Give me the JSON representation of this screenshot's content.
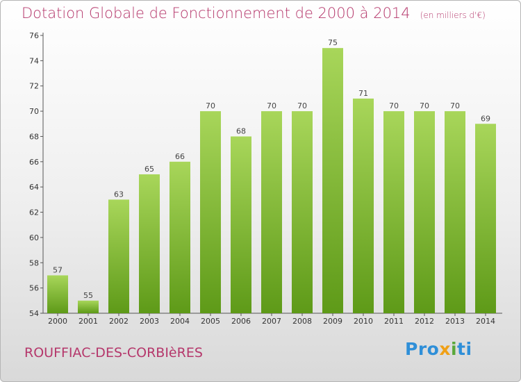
{
  "header": {
    "title": "Dotation Globale de Fonctionnement de 2000 à 2014",
    "subtitle": "(en milliers d'€)"
  },
  "footer": {
    "commune": "ROUFFIAC-DES-CORBIèRES",
    "logo_parts": [
      "Pro",
      "x",
      "i",
      "ti"
    ]
  },
  "colors": {
    "title": "#b5376b",
    "bar_top": "#a8d65a",
    "bar_bottom": "#5e9a18",
    "logo_pro": "#2f8fd8",
    "logo_x": "#f0a015",
    "logo_i": "#5aa83a",
    "logo_ti": "#2f8fd8"
  },
  "chart_data": {
    "type": "bar",
    "categories": [
      "2000",
      "2001",
      "2002",
      "2003",
      "2004",
      "2005",
      "2006",
      "2007",
      "2008",
      "2009",
      "2010",
      "2011",
      "2012",
      "2013",
      "2014"
    ],
    "values": [
      57,
      55,
      63,
      65,
      66,
      70,
      68,
      70,
      70,
      75,
      71,
      70,
      70,
      70,
      69
    ],
    "ylim": [
      54,
      76
    ],
    "yticks": [
      54,
      56,
      58,
      60,
      62,
      64,
      66,
      68,
      70,
      72,
      74,
      76
    ],
    "grid": false,
    "data_labels": true
  }
}
